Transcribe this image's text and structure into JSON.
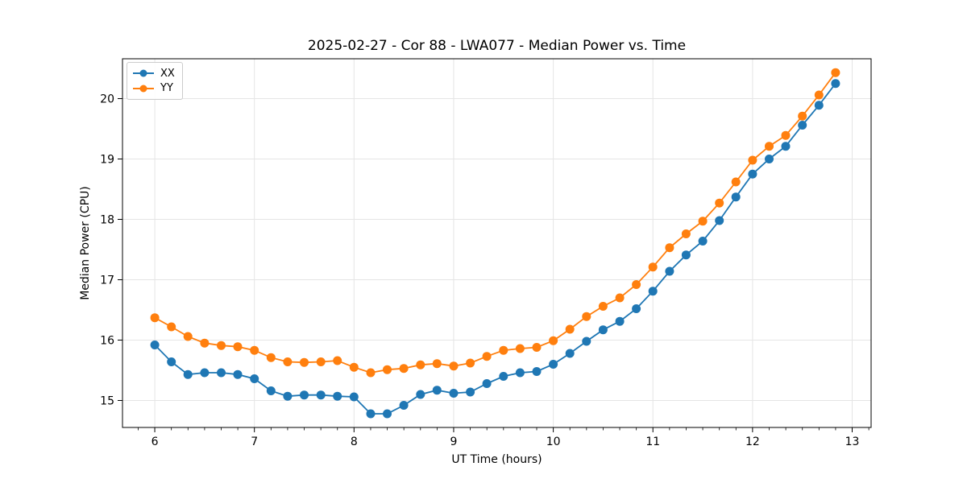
{
  "chart_data": {
    "type": "line",
    "title": "2025-02-27 - Cor 88 - LWA077 - Median Power vs. Time",
    "xlabel": "UT Time (hours)",
    "ylabel": "Median Power (CPU)",
    "xlim": [
      5.676,
      13.19
    ],
    "ylim": [
      14.553,
      20.66
    ],
    "x_ticks": [
      6,
      7,
      8,
      9,
      10,
      11,
      12,
      13
    ],
    "y_ticks": [
      15,
      16,
      17,
      18,
      19,
      20
    ],
    "x_minor_tick_interval": 0.16667,
    "grid": true,
    "legend_position": "upper left",
    "x": [
      6.0,
      6.167,
      6.333,
      6.5,
      6.667,
      6.833,
      7.0,
      7.167,
      7.333,
      7.5,
      7.667,
      7.833,
      8.0,
      8.167,
      8.333,
      8.5,
      8.667,
      8.833,
      9.0,
      9.167,
      9.333,
      9.5,
      9.667,
      9.833,
      10.0,
      10.167,
      10.333,
      10.5,
      10.667,
      10.833,
      11.0,
      11.167,
      11.333,
      11.5,
      11.667,
      11.833,
      12.0,
      12.167,
      12.333,
      12.5,
      12.667,
      12.833
    ],
    "series": [
      {
        "name": "XX",
        "color": "#1f77b4",
        "values": [
          15.92,
          15.64,
          15.43,
          15.46,
          15.46,
          15.43,
          15.36,
          15.16,
          15.07,
          15.09,
          15.09,
          15.07,
          15.06,
          14.78,
          14.78,
          14.92,
          15.1,
          15.17,
          15.12,
          15.14,
          15.28,
          15.4,
          15.46,
          15.48,
          15.6,
          15.78,
          15.98,
          16.17,
          16.31,
          16.52,
          16.81,
          17.14,
          17.41,
          17.64,
          17.98,
          18.37,
          18.75,
          19.0,
          19.21,
          19.56,
          19.89,
          20.25
        ]
      },
      {
        "name": "YY",
        "color": "#ff7f0e",
        "values": [
          16.37,
          16.22,
          16.06,
          15.95,
          15.91,
          15.89,
          15.83,
          15.71,
          15.64,
          15.63,
          15.64,
          15.66,
          15.55,
          15.46,
          15.51,
          15.53,
          15.59,
          15.61,
          15.57,
          15.62,
          15.73,
          15.83,
          15.86,
          15.88,
          15.99,
          16.18,
          16.39,
          16.56,
          16.7,
          16.92,
          17.21,
          17.53,
          17.76,
          17.97,
          18.27,
          18.62,
          18.98,
          19.21,
          19.39,
          19.71,
          20.06,
          20.43
        ]
      }
    ]
  },
  "colors": {
    "series_blue": "#1f77b4",
    "series_orange": "#ff7f0e",
    "grid": "#e5e5e5",
    "spine": "#000000",
    "legend_border": "#cccccc"
  }
}
